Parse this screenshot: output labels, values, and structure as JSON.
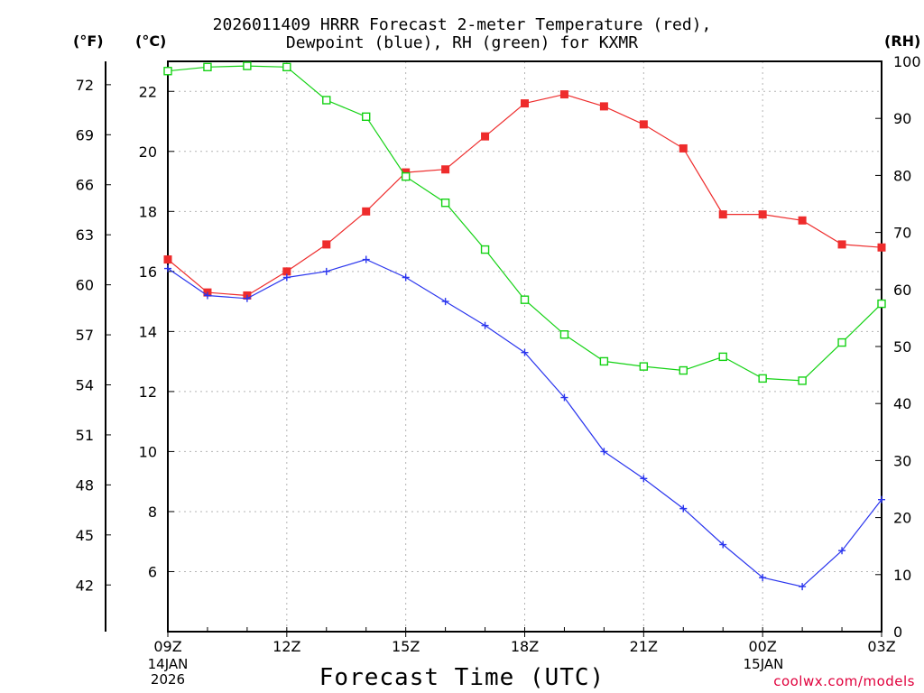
{
  "title_line1": "2026011409 HRRR Forecast 2-meter Temperature (red),",
  "title_line2": "Dewpoint (blue), RH (green) for KXMR",
  "units": {
    "f": "(°F)",
    "c": "(°C)",
    "rh": "(RH)"
  },
  "xlabel": "Forecast Time (UTC)",
  "credit": "coolwx.com/models",
  "date_notes": {
    "start_line1": "14JAN",
    "start_line2": "2026",
    "mid_line1": "15JAN"
  },
  "colors": {
    "temperature": "#ee2c2c",
    "dewpoint": "#2a35ee",
    "rh": "#14d214",
    "grid": "#b4b4b4"
  },
  "chart_data": {
    "type": "line",
    "x": [
      "09Z",
      "10Z",
      "11Z",
      "12Z",
      "13Z",
      "14Z",
      "15Z",
      "16Z",
      "17Z",
      "18Z",
      "19Z",
      "20Z",
      "21Z",
      "22Z",
      "23Z",
      "00Z",
      "01Z",
      "02Z",
      "03Z"
    ],
    "xticks": [
      "09Z",
      "12Z",
      "15Z",
      "18Z",
      "21Z",
      "00Z",
      "03Z"
    ],
    "series": [
      {
        "name": "Temperature",
        "axis": "C",
        "marker": "filled-square",
        "values": [
          16.4,
          15.3,
          15.2,
          16.0,
          16.9,
          18.0,
          19.3,
          19.4,
          20.5,
          21.6,
          21.9,
          21.5,
          20.9,
          20.1,
          17.9,
          17.9,
          17.7,
          16.9,
          16.8
        ]
      },
      {
        "name": "Dewpoint",
        "axis": "C",
        "marker": "plus",
        "values": [
          16.1,
          15.2,
          15.1,
          15.8,
          16.0,
          16.4,
          15.8,
          15.0,
          14.2,
          13.3,
          11.8,
          10.0,
          9.1,
          8.1,
          6.9,
          5.8,
          5.5,
          6.7,
          8.4
        ]
      },
      {
        "name": "RH",
        "axis": "RH",
        "marker": "open-square",
        "values": [
          98.3,
          99.0,
          99.2,
          99.0,
          93.2,
          90.3,
          79.8,
          75.2,
          67.0,
          58.2,
          52.1,
          47.4,
          46.5,
          45.8,
          48.2,
          44.4,
          44.0,
          50.7,
          57.5
        ]
      }
    ],
    "axes": {
      "celsius": {
        "ylim": [
          4.0,
          23.0
        ],
        "ticks": [
          6,
          8,
          10,
          12,
          14,
          16,
          18,
          20,
          22
        ]
      },
      "fahrenheit": {
        "ticks": [
          42,
          45,
          48,
          51,
          54,
          57,
          60,
          63,
          66,
          69,
          72
        ]
      },
      "rh": {
        "ylim": [
          0,
          100
        ],
        "ticks": [
          0,
          10,
          20,
          30,
          40,
          50,
          60,
          70,
          80,
          90,
          100
        ]
      }
    },
    "grid": true
  }
}
